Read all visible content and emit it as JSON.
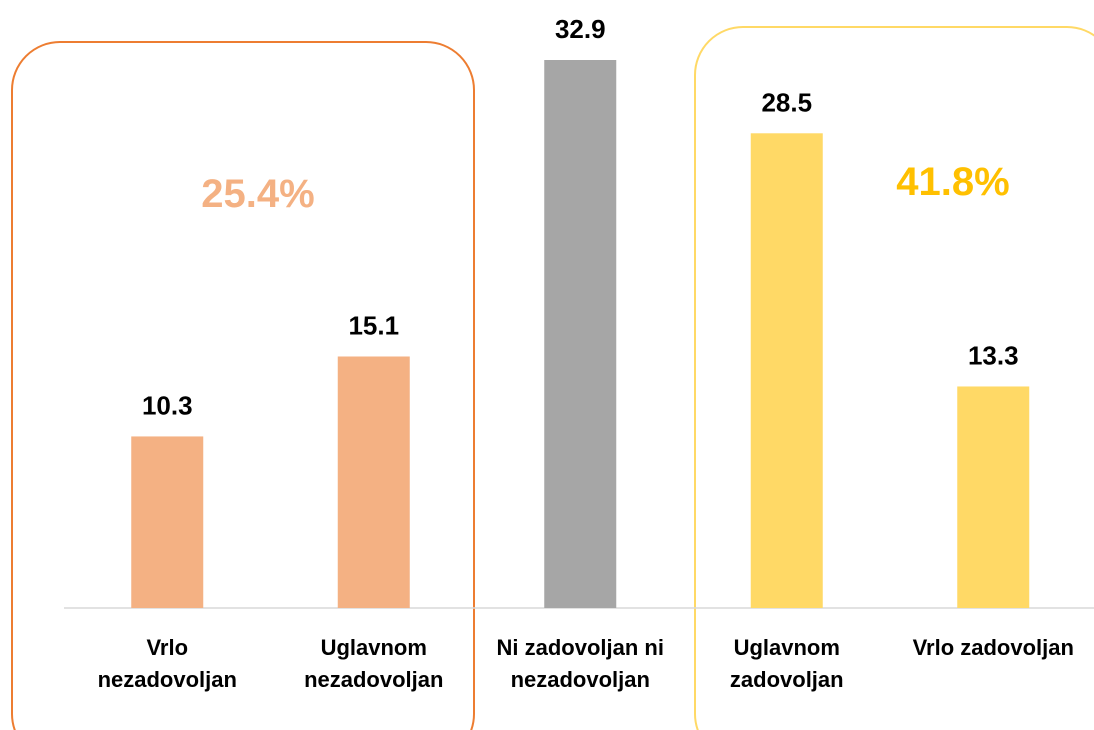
{
  "chart_data": {
    "type": "bar",
    "categories": [
      "Vrlo\nnezadovoljan",
      "Uglavnom\nnezadovoljan",
      "Ni zadovoljan ni\nnezadovoljan",
      "Uglavnom\nzadovoljan",
      "Vrlo zadovoljan"
    ],
    "values": [
      10.3,
      15.1,
      32.9,
      28.5,
      13.3
    ],
    "colors": [
      "#f4b183",
      "#f4b183",
      "#a6a6a6",
      "#ffd966",
      "#ffd966"
    ],
    "annotations": [
      {
        "text": "25.4%",
        "color": "#f4b183"
      },
      {
        "text": "41.8%",
        "color": "#ffc000"
      }
    ]
  }
}
